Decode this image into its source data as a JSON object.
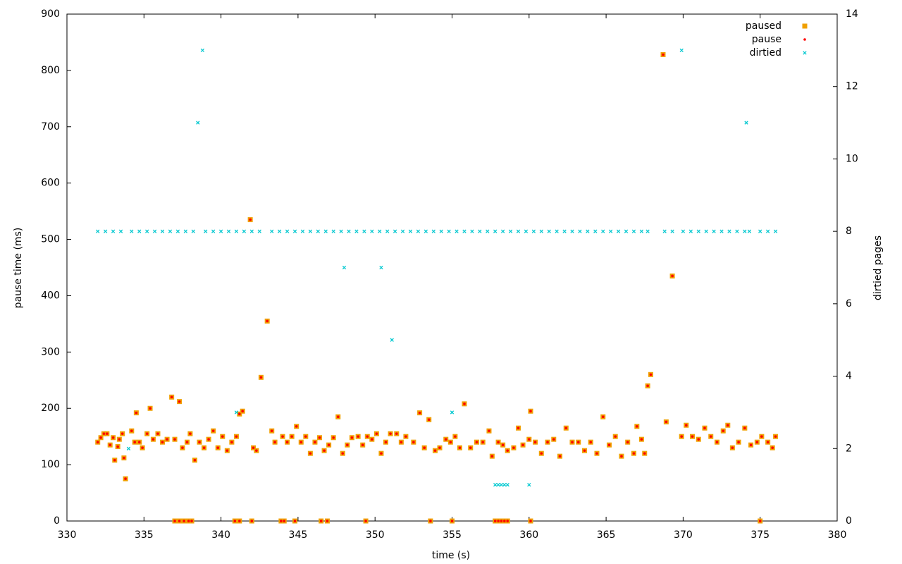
{
  "chart_data": {
    "type": "scatter",
    "xlabel": "time (s)",
    "ylabel": "pause time (ms)",
    "y2label": "dirtied pages",
    "xlim": [
      330,
      380
    ],
    "xticks": [
      330,
      335,
      340,
      345,
      350,
      355,
      360,
      365,
      370,
      375,
      380
    ],
    "ylim": [
      0,
      900
    ],
    "yticks": [
      0,
      100,
      200,
      300,
      400,
      500,
      600,
      700,
      800,
      900
    ],
    "y2lim": [
      0,
      14
    ],
    "y2ticks": [
      0,
      2,
      4,
      6,
      8,
      10,
      12,
      14
    ],
    "grid": false,
    "legend": "top-right",
    "series": [
      {
        "name": "paused",
        "color": "#f0a000",
        "marker": "square",
        "x": [
          332,
          332.2,
          332.4,
          332.6,
          332.8,
          333,
          333.1,
          333.3,
          333.4,
          333.6,
          333.7,
          333.8,
          334.2,
          334.4,
          334.5,
          334.7,
          334.9,
          335.2,
          335.4,
          335.6,
          335.9,
          336.2,
          336.5,
          336.8,
          337,
          337.3,
          337.5,
          337.8,
          338,
          338.3,
          338.6,
          338.9,
          339.2,
          339.5,
          339.8,
          340.1,
          340.4,
          340.7,
          341,
          341.2,
          341.4,
          341.9,
          342.1,
          342.3,
          342.6,
          343,
          343.3,
          343.5,
          344,
          344.3,
          344.6,
          344.9,
          345.2,
          345.5,
          345.8,
          346.1,
          346.4,
          346.7,
          347,
          347.3,
          347.6,
          347.9,
          348.2,
          348.5,
          348.9,
          349.2,
          349.5,
          349.8,
          350.1,
          350.4,
          350.7,
          351,
          351.4,
          351.7,
          352,
          352.5,
          352.9,
          353.2,
          353.5,
          353.9,
          354.2,
          354.6,
          354.9,
          355.2,
          355.5,
          355.8,
          356.2,
          356.6,
          357,
          357.4,
          357.6,
          358,
          358.3,
          358.6,
          359,
          359.3,
          359.6,
          360,
          360.1,
          360.4,
          360.8,
          361.2,
          361.6,
          362,
          362.4,
          362.8,
          363.2,
          363.6,
          364,
          364.4,
          364.8,
          365.2,
          365.6,
          366,
          366.4,
          366.8,
          367,
          367.3,
          367.5,
          367.7,
          367.9,
          368.7,
          368.9,
          369.3,
          369.9,
          370.2,
          370.6,
          371,
          371.4,
          371.8,
          372.2,
          372.6,
          372.9,
          373.2,
          373.6,
          374,
          374.4,
          374.8,
          375.1,
          375.5,
          375.8,
          376,
          337,
          337.3,
          337.6,
          337.9,
          338.1,
          340.9,
          341.2,
          342,
          343.9,
          344.1,
          344.8,
          346.5,
          346.9,
          349.4,
          353.6,
          355,
          357.8,
          358,
          358.2,
          358.4,
          358.6,
          360.1,
          375
        ],
        "values": [
          140,
          148,
          155,
          155,
          135,
          148,
          108,
          132,
          145,
          155,
          112,
          75,
          160,
          140,
          192,
          140,
          130,
          155,
          200,
          145,
          155,
          140,
          145,
          220,
          145,
          212,
          130,
          140,
          155,
          108,
          140,
          130,
          145,
          160,
          130,
          150,
          125,
          140,
          150,
          190,
          195,
          535,
          130,
          125,
          255,
          355,
          160,
          140,
          150,
          140,
          150,
          168,
          140,
          150,
          120,
          140,
          148,
          125,
          135,
          148,
          185,
          120,
          135,
          148,
          150,
          135,
          150,
          145,
          155,
          120,
          140,
          155,
          155,
          140,
          150,
          140,
          192,
          130,
          180,
          125,
          130,
          145,
          140,
          150,
          130,
          208,
          130,
          140,
          140,
          160,
          115,
          140,
          135,
          125,
          130,
          165,
          135,
          145,
          195,
          140,
          120,
          140,
          145,
          115,
          165,
          140,
          140,
          125,
          140,
          120,
          185,
          135,
          150,
          115,
          140,
          120,
          168,
          145,
          120,
          240,
          260,
          828,
          176,
          435,
          150,
          170,
          150,
          145,
          165,
          150,
          140,
          160,
          170,
          130,
          140,
          165,
          135,
          140,
          150,
          140,
          130,
          150,
          0,
          0,
          0,
          0,
          0,
          0,
          0,
          0,
          0,
          0,
          0,
          0,
          0,
          0,
          0,
          0,
          0,
          0,
          0,
          0,
          0,
          0,
          0
        ]
      },
      {
        "name": "pause",
        "color": "#ff0000",
        "marker": "dot",
        "x": [
          332,
          332.2,
          332.4,
          332.6,
          332.8,
          333,
          333.1,
          333.3,
          333.4,
          333.6,
          333.7,
          333.8,
          334.2,
          334.4,
          334.5,
          334.7,
          334.9,
          335.2,
          335.4,
          335.6,
          335.9,
          336.2,
          336.5,
          336.8,
          337,
          337.3,
          337.5,
          337.8,
          338,
          338.3,
          338.6,
          338.9,
          339.2,
          339.5,
          339.8,
          340.1,
          340.4,
          340.7,
          341,
          341.2,
          341.4,
          341.9,
          342.1,
          342.3,
          342.6,
          343,
          343.3,
          343.5,
          344,
          344.3,
          344.6,
          344.9,
          345.2,
          345.5,
          345.8,
          346.1,
          346.4,
          346.7,
          347,
          347.3,
          347.6,
          347.9,
          348.2,
          348.5,
          348.9,
          349.2,
          349.5,
          349.8,
          350.1,
          350.4,
          350.7,
          351,
          351.4,
          351.7,
          352,
          352.5,
          352.9,
          353.2,
          353.5,
          353.9,
          354.2,
          354.6,
          354.9,
          355.2,
          355.5,
          355.8,
          356.2,
          356.6,
          357,
          357.4,
          357.6,
          358,
          358.3,
          358.6,
          359,
          359.3,
          359.6,
          360,
          360.1,
          360.4,
          360.8,
          361.2,
          361.6,
          362,
          362.4,
          362.8,
          363.2,
          363.6,
          364,
          364.4,
          364.8,
          365.2,
          365.6,
          366,
          366.4,
          366.8,
          367,
          367.3,
          367.5,
          367.7,
          367.9,
          368.7,
          368.9,
          369.3,
          369.9,
          370.2,
          370.6,
          371,
          371.4,
          371.8,
          372.2,
          372.6,
          372.9,
          373.2,
          373.6,
          374,
          374.4,
          374.8,
          375.1,
          375.5,
          375.8,
          376,
          337,
          337.3,
          337.6,
          337.9,
          338.1,
          340.9,
          341.2,
          342,
          343.9,
          344.1,
          344.8,
          346.5,
          346.9,
          349.4,
          353.6,
          355,
          357.8,
          358,
          358.2,
          358.4,
          358.6,
          360.1,
          375
        ],
        "values": [
          140,
          148,
          155,
          155,
          135,
          148,
          108,
          132,
          145,
          155,
          112,
          75,
          160,
          140,
          192,
          140,
          130,
          155,
          200,
          145,
          155,
          140,
          145,
          220,
          145,
          212,
          130,
          140,
          155,
          108,
          140,
          130,
          145,
          160,
          130,
          150,
          125,
          140,
          150,
          190,
          195,
          535,
          130,
          125,
          255,
          355,
          160,
          140,
          150,
          140,
          150,
          168,
          140,
          150,
          120,
          140,
          148,
          125,
          135,
          148,
          185,
          120,
          135,
          148,
          150,
          135,
          150,
          145,
          155,
          120,
          140,
          155,
          155,
          140,
          150,
          140,
          192,
          130,
          180,
          125,
          130,
          145,
          140,
          150,
          130,
          208,
          130,
          140,
          140,
          160,
          115,
          140,
          135,
          125,
          130,
          165,
          135,
          145,
          195,
          140,
          120,
          140,
          145,
          115,
          165,
          140,
          140,
          125,
          140,
          120,
          185,
          135,
          150,
          115,
          140,
          120,
          168,
          145,
          120,
          240,
          260,
          828,
          176,
          435,
          150,
          170,
          150,
          145,
          165,
          150,
          140,
          160,
          170,
          130,
          140,
          165,
          135,
          140,
          150,
          140,
          130,
          150,
          0,
          0,
          0,
          0,
          0,
          0,
          0,
          0,
          0,
          0,
          0,
          0,
          0,
          0,
          0,
          0,
          0,
          0,
          0,
          0,
          0,
          0,
          0
        ]
      },
      {
        "name": "dirtied",
        "color": "#00c8d0",
        "marker": "x",
        "axis": "y2",
        "x": [
          332,
          332.5,
          333,
          333.5,
          334.2,
          334.7,
          335.2,
          335.7,
          336.2,
          336.7,
          337.2,
          337.7,
          338.2,
          339,
          339.5,
          340,
          340.5,
          341,
          341.5,
          342,
          342.5,
          343.3,
          343.8,
          344.3,
          344.8,
          345.3,
          345.8,
          346.3,
          346.8,
          347.3,
          347.8,
          348.3,
          348.8,
          349.3,
          349.8,
          350.3,
          350.8,
          351.3,
          351.8,
          352.3,
          352.8,
          353.3,
          353.8,
          354.3,
          354.8,
          355.3,
          355.8,
          356.3,
          356.8,
          357.3,
          357.8,
          358.3,
          358.8,
          359.3,
          359.8,
          360.3,
          360.8,
          361.3,
          361.8,
          362.3,
          362.8,
          363.3,
          363.8,
          364.3,
          364.8,
          365.3,
          365.8,
          366.3,
          366.8,
          367.3,
          367.7,
          368.8,
          369.3,
          370,
          370.5,
          371,
          371.5,
          372,
          372.5,
          373,
          373.5,
          374,
          374.3,
          375,
          375.5,
          376,
          334,
          338.5,
          338.8,
          341,
          348,
          350.4,
          351.1,
          355,
          357.8,
          358,
          358.2,
          358.4,
          358.6,
          360,
          369.9,
          374.1
        ],
        "values": [
          8,
          8,
          8,
          8,
          8,
          8,
          8,
          8,
          8,
          8,
          8,
          8,
          8,
          8,
          8,
          8,
          8,
          8,
          8,
          8,
          8,
          8,
          8,
          8,
          8,
          8,
          8,
          8,
          8,
          8,
          8,
          8,
          8,
          8,
          8,
          8,
          8,
          8,
          8,
          8,
          8,
          8,
          8,
          8,
          8,
          8,
          8,
          8,
          8,
          8,
          8,
          8,
          8,
          8,
          8,
          8,
          8,
          8,
          8,
          8,
          8,
          8,
          8,
          8,
          8,
          8,
          8,
          8,
          8,
          8,
          8,
          8,
          8,
          8,
          8,
          8,
          8,
          8,
          8,
          8,
          8,
          8,
          8,
          8,
          8,
          8,
          2,
          11,
          13,
          3,
          7,
          7,
          5,
          3,
          1,
          1,
          1,
          1,
          1,
          1,
          13,
          11
        ]
      }
    ]
  }
}
